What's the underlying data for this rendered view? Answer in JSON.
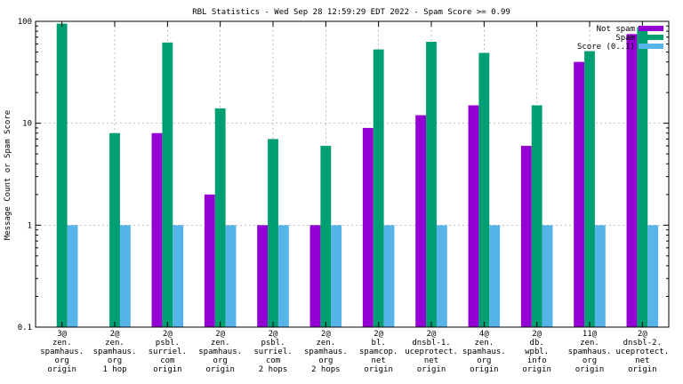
{
  "chart_data": {
    "type": "bar",
    "title": "RBL Statistics - Wed Sep 28 12:59:29 EDT 2022 - Spam Score >= 0.99",
    "xlabel": "",
    "ylabel": "Message Count or Spam Score",
    "yscale": "log",
    "ylim": [
      0.1,
      100
    ],
    "yticks": [
      "0.1",
      "1",
      "10",
      "100"
    ],
    "grid": true,
    "legend_position": "top-right",
    "categories": [
      [
        "3@",
        "zen.",
        "spamhaus.",
        "org",
        "origin"
      ],
      [
        "2@",
        "zen.",
        "spamhaus.",
        "org",
        "1 hop"
      ],
      [
        "2@",
        "psbl.",
        "surriel.",
        "com",
        "origin"
      ],
      [
        "2@",
        "zen.",
        "spamhaus.",
        "org",
        "origin"
      ],
      [
        "2@",
        "psbl.",
        "surriel.",
        "com",
        "2 hops"
      ],
      [
        "2@",
        "zen.",
        "spamhaus.",
        "org",
        "2 hops"
      ],
      [
        "2@",
        "bl.",
        "spamcop.",
        "net",
        "origin"
      ],
      [
        "2@",
        "dnsbl-1.",
        "uceprotect.",
        "net",
        "origin"
      ],
      [
        "4@",
        "zen.",
        "spamhaus.",
        "org",
        "origin"
      ],
      [
        "2@",
        "db.",
        "wpbl.",
        "info",
        "origin"
      ],
      [
        "11@",
        "zen.",
        "spamhaus.",
        "org",
        "origin"
      ],
      [
        "2@",
        "dnsbl-2.",
        "uceprotect.",
        "net",
        "origin"
      ]
    ],
    "series": [
      {
        "name": "Not spam",
        "color": "#9400d3",
        "values": [
          0,
          0,
          8,
          2,
          1,
          1,
          9,
          12,
          15,
          6,
          40,
          75
        ]
      },
      {
        "name": "Spam",
        "color": "#009e73",
        "values": [
          95,
          8,
          62,
          14,
          7,
          6,
          53,
          63,
          49,
          15,
          51,
          88
        ]
      },
      {
        "name": "Score (0..1)",
        "color": "#56b4e9",
        "values": [
          1,
          1,
          1,
          1,
          1,
          1,
          1,
          1,
          1,
          1,
          1,
          1
        ]
      }
    ]
  }
}
